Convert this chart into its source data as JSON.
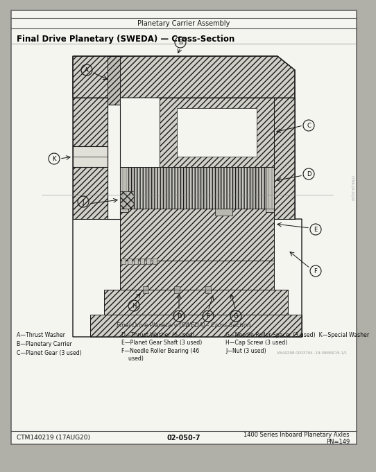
{
  "page_title": "Planetary Carrier Assembly",
  "section_title": "Final Drive Planetary (SWEDA) — Cross-Section",
  "diagram_caption": "Final Drive Planetary (SWEDA) - Cross-Section",
  "legend_col1_lines": [
    "A—Thrust Washer",
    "B—Planetary Carrier",
    "C—Planet Gear (3 used)"
  ],
  "legend_col2_lines": [
    "D—Thrust Washer (6 used)",
    "E—Planet Gear Shaft (3 used)",
    "F—Needle Roller Bearing (46",
    "    used)"
  ],
  "legend_col3_lines": [
    "G—Needle Roller Spacer (3 used)  K—Special Washer",
    "H—Cap Screw (3 used)",
    "J—Nut (3 used)"
  ],
  "footer_left": "CTM140219 (17AUG20)",
  "footer_center": "02-050-7",
  "footer_right": "1400 Series Inboard Planetary Axles",
  "footer_right2": "PN=149",
  "watermark": "VN40298.0003794 -19-09MAR19-1/1"
}
